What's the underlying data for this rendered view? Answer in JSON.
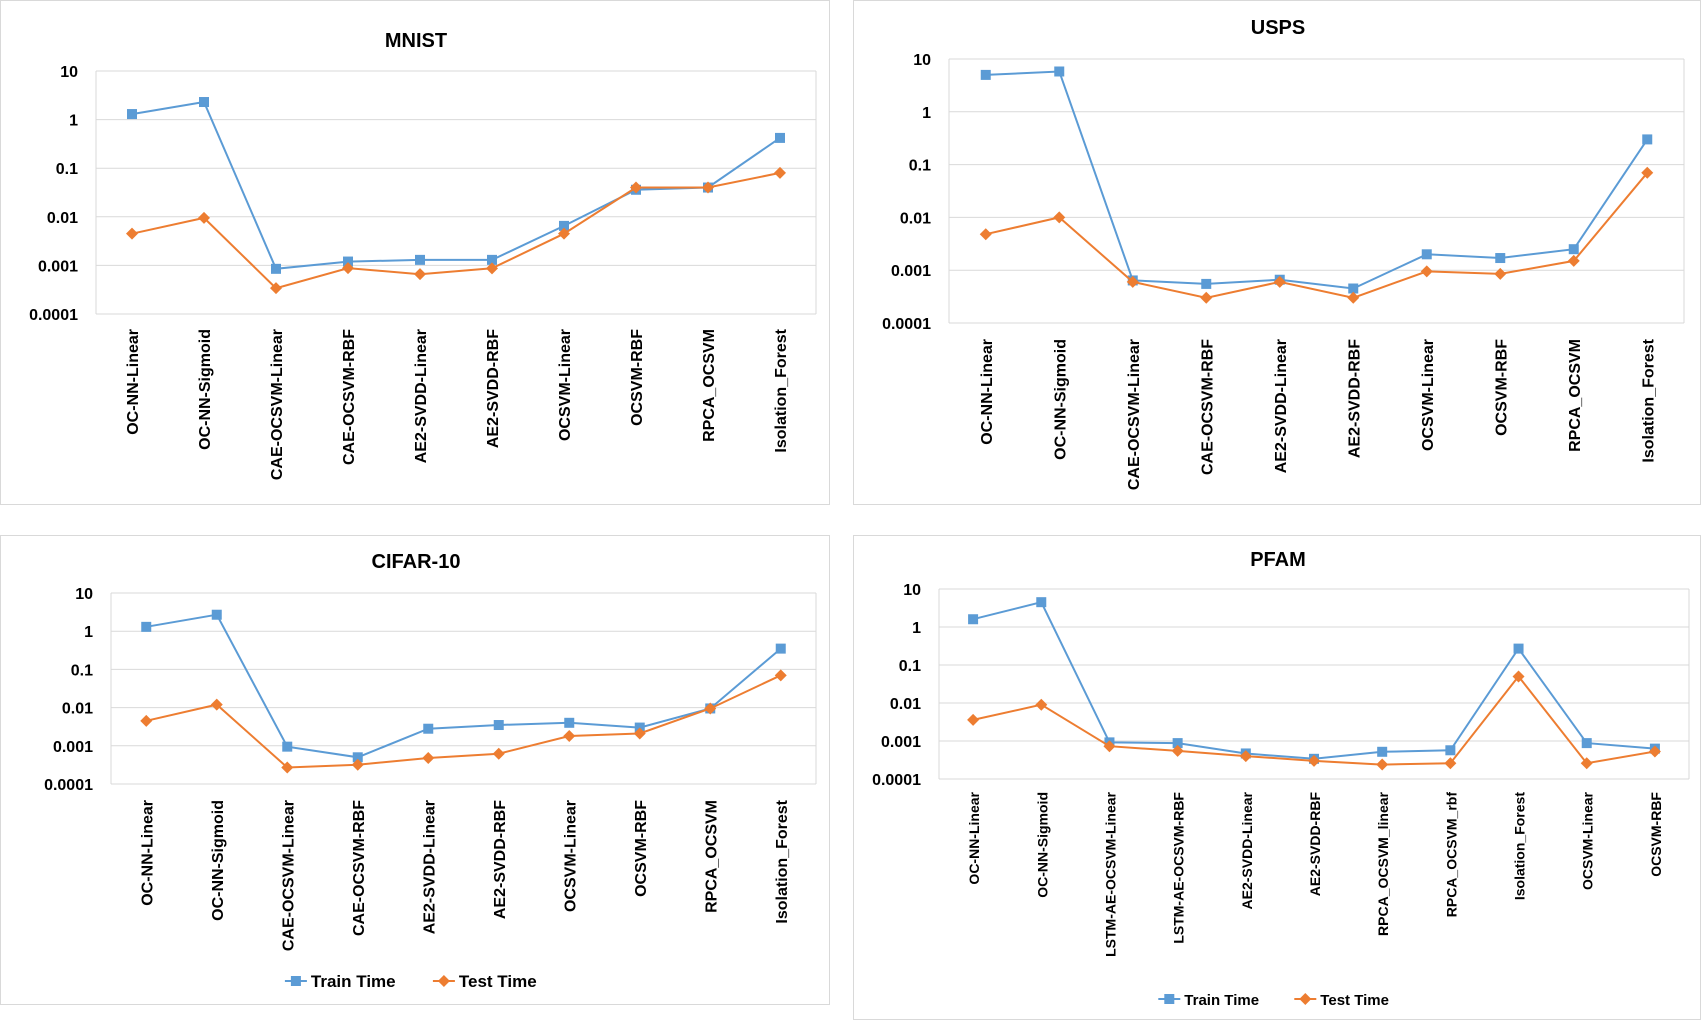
{
  "colors": {
    "train": "#5b9bd5",
    "test": "#ed7d31",
    "grid": "#d9d9d9"
  },
  "legend": {
    "train": "Train Time",
    "test": "Test Time"
  },
  "chart_data": [
    {
      "type": "line",
      "title": "MNIST",
      "yscale": "log",
      "ylim": [
        0.0001,
        10
      ],
      "yticks": [
        "10",
        "1",
        "0.1",
        "0.01",
        "0.001",
        "0.0001"
      ],
      "categories": [
        "OC-NN-Linear",
        "OC-NN-Sigmoid",
        "CAE-OCSVM-Linear",
        "CAE-OCSVM-RBF",
        "AE2-SVDD-Linear",
        "AE2-SVDD-RBF",
        "OCSVM-Linear",
        "OCSVM-RBF",
        "RPCA_OCSVM",
        "Isolation_Forest"
      ],
      "series": [
        {
          "name": "Train Time",
          "values": [
            1.3,
            2.3,
            0.00085,
            0.0012,
            0.0013,
            0.0013,
            0.0065,
            0.036,
            0.04,
            0.42
          ]
        },
        {
          "name": "Test Time",
          "values": [
            0.0045,
            0.0095,
            0.00034,
            0.00088,
            0.00066,
            0.00087,
            0.0045,
            0.04,
            0.04,
            0.08
          ]
        }
      ],
      "legend": "none"
    },
    {
      "type": "line",
      "title": "USPS",
      "yscale": "log",
      "ylim": [
        0.0001,
        10
      ],
      "yticks": [
        "10",
        "1",
        "0.1",
        "0.01",
        "0.001",
        "0.0001"
      ],
      "categories": [
        "OC-NN-Linear",
        "OC-NN-Sigmoid",
        "CAE-OCSVM-Linear",
        "CAE-OCSVM-RBF",
        "AE2-SVDD-Linear",
        "AE2-SVDD-RBF",
        "OCSVM-Linear",
        "OCSVM-RBF",
        "RPCA_OCSVM",
        "Isolation_Forest"
      ],
      "series": [
        {
          "name": "Train Time",
          "values": [
            5.0,
            5.8,
            0.00064,
            0.00055,
            0.00066,
            0.00045,
            0.002,
            0.0017,
            0.0025,
            0.3
          ]
        },
        {
          "name": "Test Time",
          "values": [
            0.0048,
            0.01,
            0.0006,
            0.0003,
            0.0006,
            0.0003,
            0.00095,
            0.00085,
            0.0015,
            0.07
          ]
        }
      ],
      "legend": "none"
    },
    {
      "type": "line",
      "title": "CIFAR-10",
      "yscale": "log",
      "ylim": [
        0.0001,
        10
      ],
      "yticks": [
        "10",
        "1",
        "0.1",
        "0.01",
        "0.001",
        "0.0001"
      ],
      "categories": [
        "OC-NN-Linear",
        "OC-NN-Sigmoid",
        "CAE-OCSVM-Linear",
        "CAE-OCSVM-RBF",
        "AE2-SVDD-Linear",
        "AE2-SVDD-RBF",
        "OCSVM-Linear",
        "OCSVM-RBF",
        "RPCA_OCSVM",
        "Isolation_Forest"
      ],
      "series": [
        {
          "name": "Train Time",
          "values": [
            1.3,
            2.7,
            0.00095,
            0.0005,
            0.0028,
            0.0035,
            0.004,
            0.003,
            0.0095,
            0.35
          ]
        },
        {
          "name": "Test Time",
          "values": [
            0.0045,
            0.012,
            0.00027,
            0.00032,
            0.00048,
            0.00062,
            0.0018,
            0.0021,
            0.0095,
            0.07
          ]
        }
      ],
      "legend": "bottom"
    },
    {
      "type": "line",
      "title": "PFAM",
      "yscale": "log",
      "ylim": [
        0.0001,
        10
      ],
      "yticks": [
        "10",
        "1",
        "0.1",
        "0.01",
        "0.001",
        "0.0001"
      ],
      "categories": [
        "OC-NN-Linear",
        "OC-NN-Sigmoid",
        "LSTM-AE-OCSVM-Linear",
        "LSTM-AE-OCSVM-RBF",
        "AE2-SVDD-Linear",
        "AE2-SVDD-RBF",
        "RPCA_OCSVM_linear",
        "RPCA_OCSVM_rbf",
        "Isolation_Forest",
        "OCSVM-Linear",
        "OCSVM-RBF"
      ],
      "series": [
        {
          "name": "Train Time",
          "values": [
            1.6,
            4.5,
            0.00092,
            0.00088,
            0.00047,
            0.00034,
            0.00052,
            0.00057,
            0.27,
            0.00088,
            0.00063
          ]
        },
        {
          "name": "Test Time",
          "values": [
            0.0036,
            0.009,
            0.00073,
            0.00055,
            0.0004,
            0.0003,
            0.00024,
            0.00026,
            0.05,
            0.00026,
            0.00053
          ]
        }
      ],
      "legend": "bottom"
    }
  ]
}
